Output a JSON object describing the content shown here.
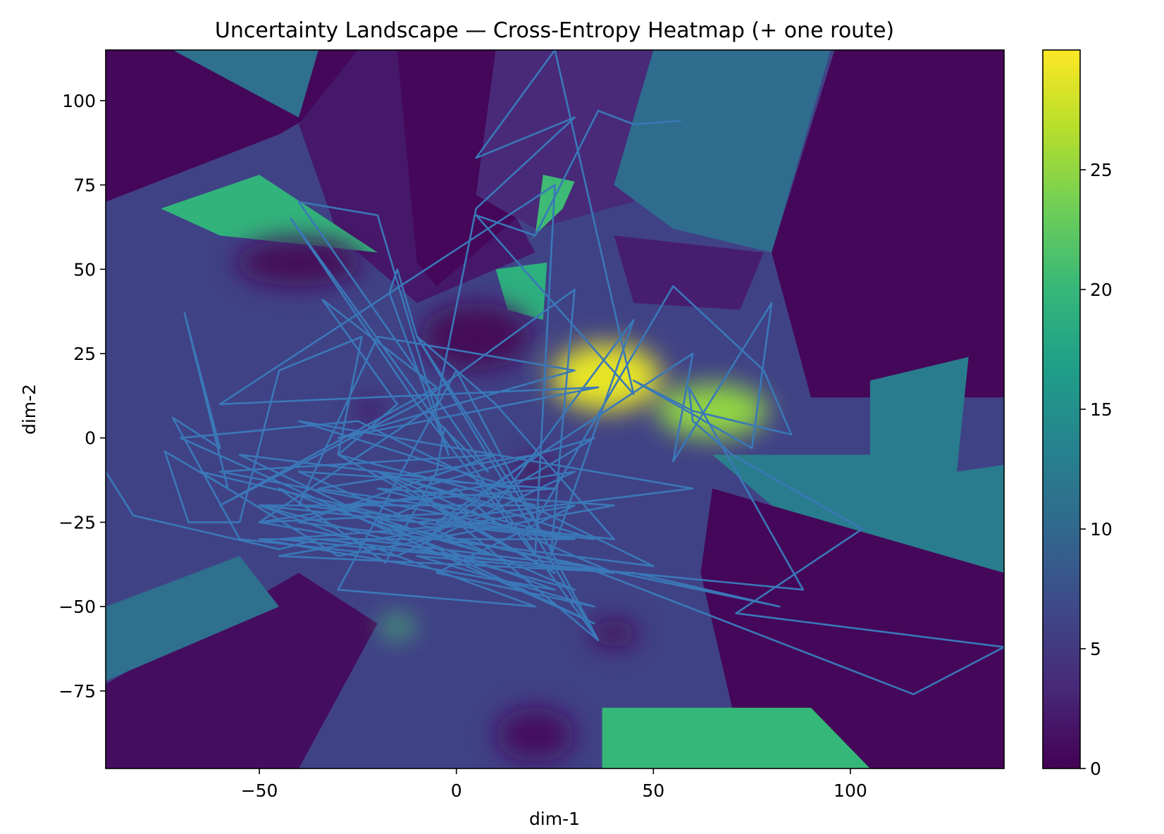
{
  "chart_data": {
    "type": "heatmap",
    "title": "Uncertainty Landscape — Cross-Entropy Heatmap (+ one route)",
    "xlabel": "dim-1",
    "ylabel": "dim-2",
    "xlim": [
      -89,
      139
    ],
    "ylim": [
      -98,
      115
    ],
    "xticks": [
      -50,
      0,
      50,
      100
    ],
    "yticks": [
      -75,
      -50,
      -25,
      0,
      25,
      50,
      75,
      100
    ],
    "colorbar": {
      "colormap": "viridis",
      "range": [
        0,
        30
      ],
      "ticks": [
        0,
        5,
        10,
        15,
        20,
        25
      ]
    },
    "colormap_stops": [
      "#440154",
      "#482878",
      "#3e4989",
      "#31688e",
      "#26828e",
      "#1f9e89",
      "#35b779",
      "#6ece58",
      "#b5de2b",
      "#fde725"
    ],
    "grid": false,
    "heatmap_regions": [
      {
        "kind": "base",
        "value": 6
      },
      {
        "kind": "poly",
        "value": 0.5,
        "pts": [
          [
            -89,
            115
          ],
          [
            -8,
            115
          ],
          [
            -45,
            90
          ],
          [
            -89,
            70
          ]
        ]
      },
      {
        "kind": "poly",
        "value": 11,
        "pts": [
          [
            -72,
            115
          ],
          [
            -35,
            115
          ],
          [
            -40,
            95
          ]
        ]
      },
      {
        "kind": "poly",
        "value": 2,
        "pts": [
          [
            -40,
            93
          ],
          [
            -25,
            115
          ],
          [
            -8,
            115
          ],
          [
            20,
            55
          ],
          [
            -10,
            40
          ],
          [
            -30,
            60
          ]
        ]
      },
      {
        "kind": "poly",
        "value": 0.5,
        "pts": [
          [
            -15,
            115
          ],
          [
            25,
            115
          ],
          [
            15,
            65
          ],
          [
            -5,
            45
          ],
          [
            -10,
            52
          ]
        ]
      },
      {
        "kind": "poly",
        "value": 3.5,
        "pts": [
          [
            10,
            115
          ],
          [
            50,
            115
          ],
          [
            45,
            70
          ],
          [
            20,
            62
          ],
          [
            5,
            72
          ]
        ]
      },
      {
        "kind": "poly",
        "value": 10.5,
        "pts": [
          [
            50,
            115
          ],
          [
            95,
            115
          ],
          [
            80,
            55
          ],
          [
            55,
            62
          ],
          [
            40,
            75
          ]
        ]
      },
      {
        "kind": "poly",
        "value": 0.5,
        "pts": [
          [
            96,
            115
          ],
          [
            139,
            115
          ],
          [
            139,
            12
          ],
          [
            90,
            12
          ],
          [
            80,
            55
          ]
        ]
      },
      {
        "kind": "poly",
        "value": 2.5,
        "pts": [
          [
            40,
            60
          ],
          [
            78,
            55
          ],
          [
            72,
            38
          ],
          [
            45,
            40
          ]
        ]
      },
      {
        "kind": "poly",
        "value": 12.5,
        "pts": [
          [
            105,
            17
          ],
          [
            130,
            24
          ],
          [
            127,
            -10
          ],
          [
            139,
            -8
          ],
          [
            139,
            -40
          ],
          [
            110,
            -35
          ],
          [
            80,
            -20
          ],
          [
            65,
            -5
          ],
          [
            105,
            -5
          ]
        ]
      },
      {
        "kind": "poly",
        "value": 0.5,
        "pts": [
          [
            65,
            -15
          ],
          [
            139,
            -40
          ],
          [
            139,
            -98
          ],
          [
            100,
            -98
          ],
          [
            70,
            -80
          ],
          [
            62,
            -40
          ]
        ]
      },
      {
        "kind": "poly",
        "value": 20,
        "pts": [
          [
            37,
            -80
          ],
          [
            90,
            -80
          ],
          [
            105,
            -98
          ],
          [
            37,
            -98
          ]
        ]
      },
      {
        "kind": "poly",
        "value": 1,
        "pts": [
          [
            -89,
            -73
          ],
          [
            -40,
            -40
          ],
          [
            -20,
            -55
          ],
          [
            -40,
            -98
          ],
          [
            -89,
            -98
          ]
        ]
      },
      {
        "kind": "poly",
        "value": 11,
        "pts": [
          [
            -89,
            -50
          ],
          [
            -55,
            -35
          ],
          [
            -45,
            -50
          ],
          [
            -89,
            -72
          ]
        ]
      },
      {
        "kind": "poly",
        "value": 19.5,
        "pts": [
          [
            -75,
            68
          ],
          [
            -50,
            78
          ],
          [
            -20,
            55
          ],
          [
            -60,
            60
          ]
        ]
      },
      {
        "kind": "poly",
        "value": 20.5,
        "pts": [
          [
            18,
            58
          ],
          [
            27,
            68
          ],
          [
            30,
            76
          ],
          [
            22,
            78
          ],
          [
            20,
            60
          ]
        ]
      },
      {
        "kind": "poly",
        "value": 19,
        "pts": [
          [
            10,
            50
          ],
          [
            23,
            52
          ],
          [
            22,
            35
          ],
          [
            13,
            38
          ]
        ]
      },
      {
        "kind": "blob",
        "value": 29,
        "cx": 38,
        "cy": 18,
        "rx": 14,
        "ry": 10
      },
      {
        "kind": "blob",
        "value": 25,
        "cx": 65,
        "cy": 8,
        "rx": 14,
        "ry": 8
      },
      {
        "kind": "blob",
        "value": 0.5,
        "cx": -40,
        "cy": 52,
        "rx": 16,
        "ry": 7
      },
      {
        "kind": "blob",
        "value": 0.5,
        "cx": 5,
        "cy": 30,
        "rx": 14,
        "ry": 10
      },
      {
        "kind": "blob",
        "value": 0.5,
        "cx": 20,
        "cy": -10,
        "rx": 5,
        "ry": 4
      },
      {
        "kind": "blob",
        "value": 0.5,
        "cx": -22,
        "cy": 8,
        "rx": 3,
        "ry": 3
      },
      {
        "kind": "blob",
        "value": 21,
        "cx": -15,
        "cy": -56,
        "rx": 4,
        "ry": 3
      },
      {
        "kind": "blob",
        "value": 0.5,
        "cx": 40,
        "cy": -58,
        "rx": 6,
        "ry": 4
      },
      {
        "kind": "blob",
        "value": 1,
        "cx": 20,
        "cy": -88,
        "rx": 10,
        "ry": 8
      }
    ],
    "route": {
      "color": "#3a78b8",
      "points": [
        [
          -89,
          -10
        ],
        [
          -82,
          -23
        ],
        [
          -45,
          -33
        ],
        [
          -35,
          -30
        ],
        [
          40,
          -40
        ],
        [
          -20,
          -10
        ],
        [
          25,
          -40
        ],
        [
          -30,
          -5
        ],
        [
          20,
          -20
        ],
        [
          -50,
          -20
        ],
        [
          30,
          -30
        ],
        [
          -60,
          -10
        ],
        [
          10,
          -5
        ],
        [
          -40,
          -25
        ],
        [
          50,
          -38
        ],
        [
          -25,
          5
        ],
        [
          -70,
          0
        ],
        [
          35,
          -55
        ],
        [
          -55,
          -5
        ],
        [
          15,
          -15
        ],
        [
          -40,
          5
        ],
        [
          60,
          -15
        ],
        [
          -10,
          -25
        ],
        [
          -65,
          -10
        ],
        [
          -30,
          -35
        ],
        [
          40,
          -20
        ],
        [
          -20,
          -15
        ],
        [
          30,
          -30
        ],
        [
          -50,
          -30
        ],
        [
          25,
          -45
        ],
        [
          -45,
          -15
        ],
        [
          -18,
          -37
        ],
        [
          -5,
          -10
        ],
        [
          -3,
          3
        ],
        [
          36,
          -60
        ],
        [
          -10,
          -15
        ],
        [
          35,
          0
        ],
        [
          -8,
          -30
        ],
        [
          20,
          -5
        ],
        [
          -35,
          -15
        ],
        [
          5,
          -22
        ],
        [
          -50,
          -25
        ],
        [
          30,
          -10
        ],
        [
          -15,
          -35
        ],
        [
          -55,
          -30
        ],
        [
          -72,
          6
        ],
        [
          -60,
          -3
        ],
        [
          -69,
          37
        ],
        [
          -58,
          -15
        ],
        [
          -74,
          -4
        ],
        [
          -68,
          -25
        ],
        [
          -55,
          -25
        ],
        [
          -45,
          20
        ],
        [
          -24,
          30
        ],
        [
          -30,
          -5
        ],
        [
          -15,
          10
        ],
        [
          -34,
          41
        ],
        [
          -5,
          15
        ],
        [
          -60,
          -20
        ],
        [
          -10,
          10
        ],
        [
          -42,
          65
        ],
        [
          -5,
          5
        ],
        [
          8,
          -10
        ],
        [
          -40,
          70
        ],
        [
          -20,
          66
        ],
        [
          -2,
          -5
        ],
        [
          -17,
          43
        ],
        [
          -15,
          50
        ],
        [
          -10,
          30
        ],
        [
          10,
          10
        ],
        [
          40,
          -30
        ],
        [
          -40,
          -20
        ],
        [
          -20,
          30
        ],
        [
          30,
          20
        ],
        [
          -30,
          0
        ],
        [
          36,
          15
        ],
        [
          -60,
          10
        ],
        [
          25,
          75
        ],
        [
          20,
          -35
        ],
        [
          -10,
          10
        ],
        [
          30,
          44
        ],
        [
          24,
          -35
        ],
        [
          45,
          35
        ],
        [
          10,
          -20
        ],
        [
          -20,
          -10
        ],
        [
          35,
          -30
        ],
        [
          -5,
          -25
        ],
        [
          60,
          25
        ],
        [
          55,
          -7
        ],
        [
          80,
          40
        ],
        [
          75,
          -3
        ],
        [
          45,
          17
        ],
        [
          60,
          8
        ],
        [
          85,
          1
        ],
        [
          78,
          20
        ],
        [
          55,
          45
        ],
        [
          20,
          -25
        ],
        [
          -10,
          30
        ],
        [
          36,
          -60
        ],
        [
          0,
          20
        ],
        [
          -30,
          -45
        ],
        [
          20,
          -50
        ],
        [
          -50,
          -20
        ],
        [
          30,
          -45
        ],
        [
          -40,
          -10
        ],
        [
          25,
          -15
        ],
        [
          -30,
          -20
        ],
        [
          10,
          -35
        ],
        [
          -20,
          -25
        ],
        [
          40,
          -40
        ],
        [
          -10,
          -35
        ],
        [
          35,
          -50
        ],
        [
          -5,
          -40
        ],
        [
          30,
          -20
        ],
        [
          -45,
          -35
        ],
        [
          45,
          -40
        ],
        [
          82,
          -50
        ],
        [
          -20,
          -25
        ],
        [
          0,
          -15
        ],
        [
          10,
          -25
        ],
        [
          -45,
          -30
        ],
        [
          88,
          -45
        ],
        [
          59,
          15
        ],
        [
          60,
          5
        ],
        [
          70,
          -5
        ],
        [
          103,
          -27
        ],
        [
          71,
          -52
        ],
        [
          139,
          -62
        ],
        [
          116,
          -76
        ],
        [
          32,
          -38
        ],
        [
          -25,
          -30
        ],
        [
          -50,
          -25
        ],
        [
          -5,
          10
        ],
        [
          5,
          68
        ],
        [
          30,
          95
        ],
        [
          5,
          83
        ],
        [
          25,
          115
        ],
        [
          45,
          13
        ],
        [
          5,
          66
        ],
        [
          20,
          60
        ],
        [
          36,
          97
        ],
        [
          45,
          93
        ],
        [
          57,
          94
        ]
      ]
    }
  }
}
